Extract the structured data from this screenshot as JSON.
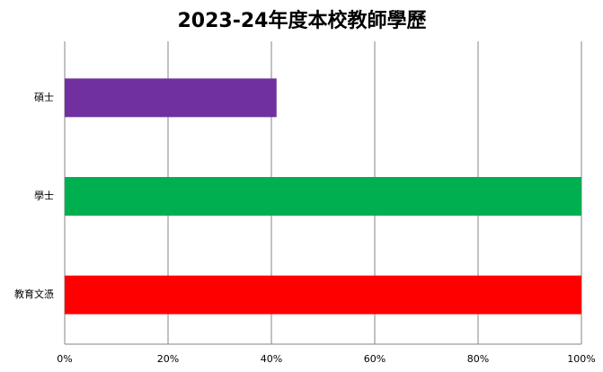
{
  "chart_data": {
    "type": "barh",
    "title": "2023-24年度本校教師學歷",
    "categories": [
      "碩士",
      "學士",
      "教育文憑"
    ],
    "series": [
      {
        "values": [
          41,
          100,
          100
        ],
        "colors": [
          "#7030a0",
          "#00b050",
          "#ff0000"
        ]
      }
    ],
    "xlim": [
      0,
      100
    ],
    "xticks": [
      {
        "value": 0,
        "label": "0%"
      },
      {
        "value": 20,
        "label": "20%"
      },
      {
        "value": 40,
        "label": "40%"
      },
      {
        "value": 60,
        "label": "60%"
      },
      {
        "value": 80,
        "label": "80%"
      },
      {
        "value": 100,
        "label": "100%"
      }
    ],
    "grid": true
  }
}
